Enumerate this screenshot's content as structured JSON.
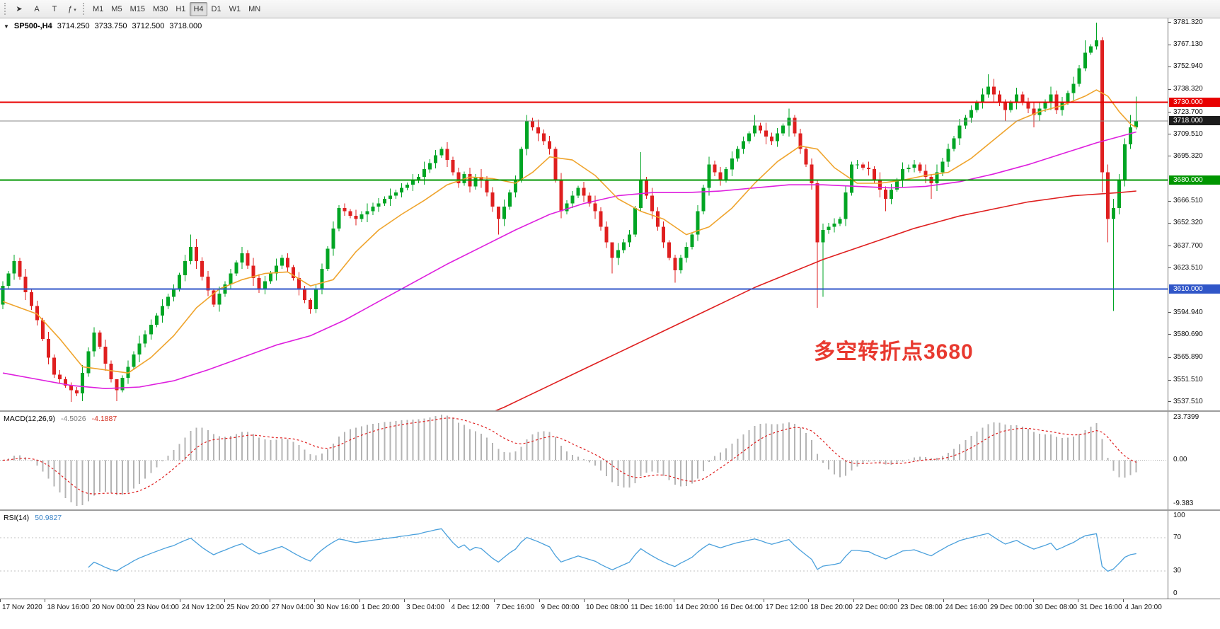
{
  "toolbar": {
    "tools": [
      {
        "name": "pointer",
        "glyph": "➤"
      },
      {
        "name": "text-label",
        "glyph": "A"
      },
      {
        "name": "text-tool",
        "glyph": "T"
      },
      {
        "name": "indicators",
        "glyph": "ƒ"
      }
    ],
    "timeframes": [
      {
        "label": "M1",
        "active": false
      },
      {
        "label": "M5",
        "active": false
      },
      {
        "label": "M15",
        "active": false
      },
      {
        "label": "M30",
        "active": false
      },
      {
        "label": "H1",
        "active": false
      },
      {
        "label": "H4",
        "active": true
      },
      {
        "label": "D1",
        "active": false
      },
      {
        "label": "W1",
        "active": false
      },
      {
        "label": "MN",
        "active": false
      }
    ]
  },
  "symbol_bar": {
    "dropdown_glyph": "▼",
    "symbol": "SP500-,H4",
    "open": "3714.250",
    "high": "3733.750",
    "low": "3712.500",
    "close": "3718.000"
  },
  "annotation": {
    "text": "多空转折点3680",
    "color": "#e8392f"
  },
  "price_axis": {
    "min": 3532,
    "max": 3784,
    "labels": [
      3781.32,
      3767.13,
      3752.94,
      3738.32,
      3723.7,
      3709.51,
      3695.32,
      3666.51,
      3652.32,
      3637.7,
      3623.51,
      3594.94,
      3580.69,
      3565.89,
      3551.51,
      3537.51
    ]
  },
  "hlines": [
    {
      "price": 3730,
      "color": "#e80000",
      "label": "3730.000",
      "width": 2
    },
    {
      "price": 3680,
      "color": "#009600",
      "label": "3680.000",
      "width": 2
    },
    {
      "price": 3610,
      "color": "#3056c8",
      "label": "3610.000",
      "width": 2
    }
  ],
  "current_price": {
    "price": 3718,
    "label": "3718.000",
    "line_color": "#888888",
    "box_color": "#1c1c1c"
  },
  "macd": {
    "label": "MACD(12,26,9)",
    "value_main": "-4.5026",
    "value_signal": "-4.1887",
    "params": {
      "fast": 12,
      "slow": 26,
      "signal": 9
    },
    "axis": {
      "top": "23.7399",
      "zero": "0.00",
      "bottom": "-9.383"
    }
  },
  "rsi": {
    "label": "RSI(14)",
    "value": "50.9827",
    "period": 14,
    "levels": [
      70,
      30
    ],
    "axis": [
      "100",
      "70",
      "30",
      "0"
    ]
  },
  "time_axis": {
    "labels": [
      "17 Nov 2020",
      "18 Nov 16:00",
      "20 Nov 00:00",
      "23 Nov 04:00",
      "24 Nov 12:00",
      "25 Nov 20:00",
      "27 Nov 04:00",
      "30 Nov 16:00",
      "1 Dec 20:00",
      "3 Dec 04:00",
      "4 Dec 12:00",
      "7 Dec 16:00",
      "9 Dec 00:00",
      "10 Dec 08:00",
      "11 Dec 16:00",
      "14 Dec 20:00",
      "16 Dec 04:00",
      "17 Dec 12:00",
      "18 Dec 20:00",
      "22 Dec 00:00",
      "23 Dec 08:00",
      "24 Dec 16:00",
      "29 Dec 00:00",
      "30 Dec 08:00",
      "31 Dec 16:00",
      "4 Jan 20:00"
    ]
  },
  "chart_data": {
    "type": "candlestick",
    "title": "SP500- H4",
    "first_open": 3600,
    "note": "candles: [close] or [close, high, low]; open = previous close",
    "wick_pad_pattern": [
      3,
      1.5,
      4,
      2,
      5,
      2.5,
      3.5,
      1.5,
      4.5,
      2
    ],
    "candles": [
      [
        3612
      ],
      [
        3620
      ],
      [
        3628
      ],
      [
        3618
      ],
      [
        3608
      ],
      [
        3599
      ],
      [
        3590
      ],
      [
        3578
      ],
      [
        3566
      ],
      [
        3555
      ],
      [
        3552
      ],
      [
        3548
      ],
      [
        3545,
        3550,
        3537.5
      ],
      [
        3543
      ],
      [
        3556
      ],
      [
        3570
      ],
      [
        3582
      ],
      [
        3573
      ],
      [
        3562
      ],
      [
        3552
      ],
      [
        3545,
        3550,
        3538
      ],
      [
        3553
      ],
      [
        3560
      ],
      [
        3568
      ],
      [
        3575
      ],
      [
        3581
      ],
      [
        3587
      ],
      [
        3593
      ],
      [
        3599
      ],
      [
        3605
      ],
      [
        3610
      ],
      [
        3619
      ],
      [
        3628
      ],
      [
        3637,
        3645,
        3626
      ],
      [
        3628
      ],
      [
        3618
      ],
      [
        3609
      ],
      [
        3600
      ],
      [
        3607
      ],
      [
        3613
      ],
      [
        3620
      ],
      [
        3627
      ],
      [
        3633
      ],
      [
        3625
      ],
      [
        3617
      ],
      [
        3610
      ],
      [
        3615
      ],
      [
        3620
      ],
      [
        3625
      ],
      [
        3630
      ],
      [
        3624
      ],
      [
        3617
      ],
      [
        3610
      ],
      [
        3603
      ],
      [
        3597,
        3604,
        3594
      ],
      [
        3610
      ],
      [
        3623
      ],
      [
        3636
      ],
      [
        3649
      ],
      [
        3662
      ],
      [
        3660
      ],
      [
        3657
      ],
      [
        3655
      ],
      [
        3658
      ],
      [
        3660
      ],
      [
        3663
      ],
      [
        3665
      ],
      [
        3668
      ],
      [
        3670
      ],
      [
        3672
      ],
      [
        3675
      ],
      [
        3677
      ],
      [
        3680
      ],
      [
        3682
      ],
      [
        3687
      ],
      [
        3691
      ],
      [
        3696
      ],
      [
        3700
      ],
      [
        3693
      ],
      [
        3685
      ],
      [
        3678
      ],
      [
        3684
      ],
      [
        3676
      ],
      [
        3682
      ],
      [
        3680
      ],
      [
        3672
      ],
      [
        3663
      ],
      [
        3655,
        3663,
        3645
      ],
      [
        3663
      ],
      [
        3672
      ],
      [
        3680
      ],
      [
        3700
      ],
      [
        3718
      ],
      [
        3714
      ],
      [
        3710
      ],
      [
        3705
      ],
      [
        3700
      ],
      [
        3680
      ],
      [
        3660
      ],
      [
        3665
      ],
      [
        3670
      ],
      [
        3675
      ],
      [
        3670
      ],
      [
        3665
      ],
      [
        3660
      ],
      [
        3650
      ],
      [
        3640
      ],
      [
        3630,
        3640,
        3620
      ],
      [
        3635
      ],
      [
        3640
      ],
      [
        3645
      ],
      [
        3662
      ],
      [
        3680,
        3698,
        3660
      ],
      [
        3670
      ],
      [
        3660
      ],
      [
        3650
      ],
      [
        3640
      ],
      [
        3630
      ],
      [
        3622,
        3632,
        3614
      ],
      [
        3630
      ],
      [
        3637
      ],
      [
        3645
      ],
      [
        3660
      ],
      [
        3675
      ],
      [
        3690
      ],
      [
        3685
      ],
      [
        3680
      ],
      [
        3687
      ],
      [
        3694
      ],
      [
        3700
      ],
      [
        3705
      ],
      [
        3710
      ],
      [
        3715,
        3722,
        3708
      ],
      [
        3712
      ],
      [
        3708
      ],
      [
        3705
      ],
      [
        3710
      ],
      [
        3715
      ],
      [
        3720,
        3726,
        3708
      ],
      [
        3710
      ],
      [
        3700
      ],
      [
        3690
      ],
      [
        3678
      ],
      [
        3640,
        3680,
        3598
      ],
      [
        3648,
        3652,
        3605
      ],
      [
        3650
      ],
      [
        3652
      ],
      [
        3655
      ],
      [
        3672
      ],
      [
        3690
      ],
      [
        3690
      ],
      [
        3688
      ],
      [
        3687
      ],
      [
        3680
      ],
      [
        3674
      ],
      [
        3668,
        3676,
        3660
      ],
      [
        3674
      ],
      [
        3680
      ],
      [
        3687
      ],
      [
        3688
      ],
      [
        3690
      ],
      [
        3686
      ],
      [
        3682
      ],
      [
        3678,
        3684,
        3668
      ],
      [
        3685
      ],
      [
        3692
      ],
      [
        3700
      ],
      [
        3707
      ],
      [
        3715
      ],
      [
        3720
      ],
      [
        3725
      ],
      [
        3730
      ],
      [
        3735
      ],
      [
        3740,
        3748,
        3733
      ],
      [
        3735
      ],
      [
        3730
      ],
      [
        3725,
        3732,
        3718
      ],
      [
        3730
      ],
      [
        3735
      ],
      [
        3730
      ],
      [
        3726
      ],
      [
        3722,
        3730,
        3714
      ],
      [
        3726
      ],
      [
        3730
      ],
      [
        3735
      ],
      [
        3725
      ],
      [
        3730
      ],
      [
        3736
      ],
      [
        3742
      ],
      [
        3752
      ],
      [
        3762,
        3770,
        3750
      ],
      [
        3766
      ],
      [
        3770,
        3781.3,
        3764
      ],
      [
        3685,
        3772,
        3672
      ],
      [
        3655,
        3690,
        3640
      ],
      [
        3662,
        3668,
        3596
      ],
      [
        3680,
        3684,
        3658
      ],
      [
        3703,
        3707,
        3676
      ],
      [
        3714,
        3722,
        3700
      ],
      [
        3718,
        3733.8,
        3712.5
      ]
    ],
    "ma_fast_anchors": [
      [
        0,
        3602
      ],
      [
        6,
        3594
      ],
      [
        10,
        3578
      ],
      [
        14,
        3560
      ],
      [
        18,
        3558
      ],
      [
        22,
        3556
      ],
      [
        26,
        3566
      ],
      [
        30,
        3580
      ],
      [
        34,
        3598
      ],
      [
        38,
        3610
      ],
      [
        42,
        3616
      ],
      [
        46,
        3620
      ],
      [
        50,
        3621
      ],
      [
        54,
        3612
      ],
      [
        58,
        3616
      ],
      [
        62,
        3634
      ],
      [
        66,
        3648
      ],
      [
        70,
        3658
      ],
      [
        74,
        3667
      ],
      [
        78,
        3677
      ],
      [
        82,
        3682
      ],
      [
        86,
        3681
      ],
      [
        90,
        3678
      ],
      [
        93,
        3685
      ],
      [
        96,
        3695
      ],
      [
        100,
        3693
      ],
      [
        104,
        3683
      ],
      [
        108,
        3668
      ],
      [
        112,
        3660
      ],
      [
        116,
        3655
      ],
      [
        120,
        3645
      ],
      [
        124,
        3650
      ],
      [
        128,
        3662
      ],
      [
        132,
        3678
      ],
      [
        136,
        3692
      ],
      [
        140,
        3702
      ],
      [
        143,
        3700
      ],
      [
        146,
        3688
      ],
      [
        150,
        3678
      ],
      [
        154,
        3678
      ],
      [
        158,
        3680
      ],
      [
        162,
        3683
      ],
      [
        166,
        3685
      ],
      [
        170,
        3694
      ],
      [
        174,
        3706
      ],
      [
        178,
        3718
      ],
      [
        182,
        3724
      ],
      [
        186,
        3728
      ],
      [
        190,
        3734
      ],
      [
        192,
        3738
      ],
      [
        194,
        3734
      ],
      [
        196,
        3724
      ],
      [
        198,
        3716
      ],
      [
        199,
        3714
      ]
    ],
    "ma_mid_anchors": [
      [
        0,
        3556
      ],
      [
        6,
        3552
      ],
      [
        12,
        3548
      ],
      [
        18,
        3546
      ],
      [
        24,
        3547
      ],
      [
        30,
        3551
      ],
      [
        36,
        3558
      ],
      [
        42,
        3566
      ],
      [
        48,
        3574
      ],
      [
        54,
        3580
      ],
      [
        60,
        3590
      ],
      [
        66,
        3602
      ],
      [
        72,
        3614
      ],
      [
        78,
        3626
      ],
      [
        84,
        3637
      ],
      [
        90,
        3648
      ],
      [
        96,
        3658
      ],
      [
        102,
        3665
      ],
      [
        108,
        3670
      ],
      [
        114,
        3672
      ],
      [
        120,
        3672
      ],
      [
        126,
        3673
      ],
      [
        132,
        3675
      ],
      [
        138,
        3677
      ],
      [
        144,
        3677
      ],
      [
        150,
        3676
      ],
      [
        156,
        3675
      ],
      [
        162,
        3676
      ],
      [
        168,
        3679
      ],
      [
        174,
        3684
      ],
      [
        180,
        3690
      ],
      [
        186,
        3697
      ],
      [
        192,
        3704
      ],
      [
        196,
        3708
      ],
      [
        199,
        3711
      ]
    ],
    "ma_slow_anchors": [
      [
        84,
        3528
      ],
      [
        88,
        3534
      ],
      [
        92,
        3541
      ],
      [
        96,
        3548
      ],
      [
        100,
        3555
      ],
      [
        104,
        3562
      ],
      [
        108,
        3569
      ],
      [
        112,
        3576
      ],
      [
        116,
        3583
      ],
      [
        120,
        3590
      ],
      [
        124,
        3597
      ],
      [
        128,
        3604
      ],
      [
        132,
        3611
      ],
      [
        136,
        3617
      ],
      [
        140,
        3623
      ],
      [
        144,
        3629
      ],
      [
        148,
        3634
      ],
      [
        152,
        3639
      ],
      [
        156,
        3644
      ],
      [
        160,
        3649
      ],
      [
        164,
        3653
      ],
      [
        168,
        3657
      ],
      [
        172,
        3660
      ],
      [
        176,
        3663
      ],
      [
        180,
        3666
      ],
      [
        184,
        3668
      ],
      [
        188,
        3670
      ],
      [
        192,
        3671
      ],
      [
        196,
        3672
      ],
      [
        199,
        3673
      ]
    ],
    "colors": {
      "up": "#00a524",
      "down": "#df1f1f",
      "ma_fast": "#efa42d",
      "ma_mid": "#de1fde",
      "ma_slow": "#df1f1f",
      "macd_hist": "#b4b4b4",
      "macd_signal": "#df1f1f",
      "rsi": "#4aa0dc"
    }
  }
}
